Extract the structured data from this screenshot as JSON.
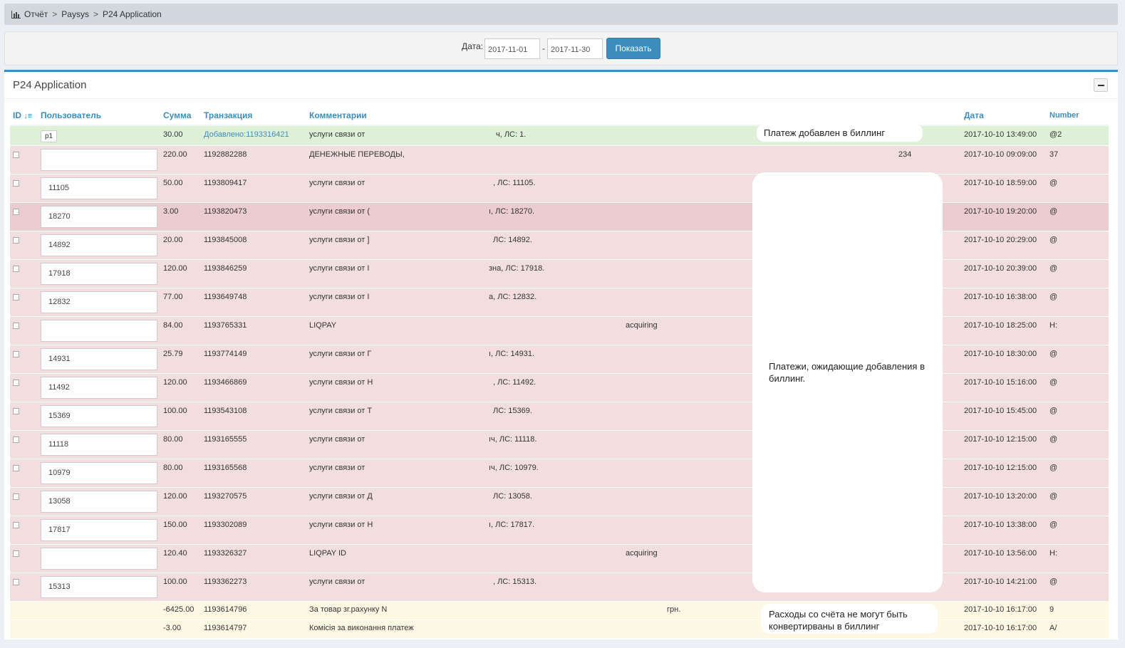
{
  "breadcrumb": {
    "items": [
      "Отчёт",
      "Paysys",
      "P24 Application"
    ],
    "separator": ">"
  },
  "filter": {
    "label": "Дата:",
    "date_from": "2017-11-01",
    "separator": "-",
    "date_to": "2017-11-30",
    "button": "Показать"
  },
  "panel": {
    "title": "P24 Application"
  },
  "columns": {
    "id": "ID",
    "user": "Пользователь",
    "sum": "Сумма",
    "transaction": "Транзакция",
    "comment": "Комментарии",
    "date": "Дата",
    "number": "Number"
  },
  "green_row": {
    "user_tag": "p1",
    "sum": "30.00",
    "added_prefix": "Добавлено:",
    "transaction": "1193316421",
    "comment": "услуги связи от",
    "comment_tail": "ч, ЛС: 1.",
    "date": "2017-10-10 13:49:00",
    "number": "@2"
  },
  "red_rows": [
    {
      "user": "",
      "sum": "220.00",
      "transaction": "1192882288",
      "comment": "ДЕНЕЖНЫЕ ПЕРЕВОДЫ,",
      "comment_tail": "",
      "extra": "234",
      "date": "2017-10-10 09:09:00",
      "number": "37"
    },
    {
      "user": "11105",
      "sum": "50.00",
      "transaction": "1193809417",
      "comment": "услуги связи от",
      "comment_tail": ", ЛС: 11105.",
      "extra": "",
      "date": "2017-10-10 18:59:00",
      "number": "@"
    },
    {
      "user": "18270",
      "sum": "3.00",
      "transaction": "1193820473",
      "comment": "услуги связи от (",
      "comment_tail": "ı, ЛС: 18270.",
      "extra": "",
      "date": "2017-10-10 19:20:00",
      "number": "@"
    },
    {
      "user": "14892",
      "sum": "20.00",
      "transaction": "1193845008",
      "comment": "услуги связи от ]",
      "comment_tail": "ЛС: 14892.",
      "extra": "",
      "date": "2017-10-10 20:29:00",
      "number": "@"
    },
    {
      "user": "17918",
      "sum": "120.00",
      "transaction": "1193846259",
      "comment": "услуги связи от I",
      "comment_tail": "зна, ЛС: 17918.",
      "extra": "",
      "date": "2017-10-10 20:39:00",
      "number": "@"
    },
    {
      "user": "12832",
      "sum": "77.00",
      "transaction": "1193649748",
      "comment": "услуги связи от I",
      "comment_tail": "а, ЛС: 12832.",
      "extra": "",
      "date": "2017-10-10 16:38:00",
      "number": "@"
    },
    {
      "user": "",
      "sum": "84.00",
      "transaction": "1193765331",
      "comment": "LIQPAY",
      "comment_tail": "",
      "extra": "acquiring",
      "date": "2017-10-10 18:25:00",
      "number": "H:"
    },
    {
      "user": "14931",
      "sum": "25.79",
      "transaction": "1193774149",
      "comment": "услуги связи от Г",
      "comment_tail": "ı, ЛС: 14931.",
      "extra": "",
      "date": "2017-10-10 18:30:00",
      "number": "@"
    },
    {
      "user": "11492",
      "sum": "120.00",
      "transaction": "1193466869",
      "comment": "услуги связи от Н",
      "comment_tail": ", ЛС: 11492.",
      "extra": "",
      "date": "2017-10-10 15:16:00",
      "number": "@"
    },
    {
      "user": "15369",
      "sum": "100.00",
      "transaction": "1193543108",
      "comment": "услуги связи от Т",
      "comment_tail": "ЛС: 15369.",
      "extra": "",
      "date": "2017-10-10 15:45:00",
      "number": "@"
    },
    {
      "user": "11118",
      "sum": "80.00",
      "transaction": "1193165555",
      "comment": "услуги связи от",
      "comment_tail": "ıч, ЛС: 11118.",
      "extra": "",
      "date": "2017-10-10 12:15:00",
      "number": "@"
    },
    {
      "user": "10979",
      "sum": "80.00",
      "transaction": "1193165568",
      "comment": "услуги связи от",
      "comment_tail": "ıч, ЛС: 10979.",
      "extra": "",
      "date": "2017-10-10 12:15:00",
      "number": "@"
    },
    {
      "user": "13058",
      "sum": "120.00",
      "transaction": "1193270575",
      "comment": "услуги связи от Д",
      "comment_tail": "ЛС: 13058.",
      "extra": "",
      "date": "2017-10-10 13:20:00",
      "number": "@"
    },
    {
      "user": "17817",
      "sum": "150.00",
      "transaction": "1193302089",
      "comment": "услуги связи от Н",
      "comment_tail": "ı, ЛС: 17817.",
      "extra": "",
      "date": "2017-10-10 13:38:00",
      "number": "@"
    },
    {
      "user": "",
      "sum": "120.40",
      "transaction": "1193326327",
      "comment": "LIQPAY ID",
      "comment_tail": "",
      "extra": "acquiring",
      "date": "2017-10-10 13:56:00",
      "number": "H:"
    },
    {
      "user": "15313",
      "sum": "100.00",
      "transaction": "1193362273",
      "comment": "услуги связи от",
      "comment_tail": ", ЛС: 15313.",
      "extra": "",
      "date": "2017-10-10 14:21:00",
      "number": "@"
    }
  ],
  "yellow_rows": [
    {
      "sum": "-6425.00",
      "transaction": "1193614796",
      "comment": "За товар зг.рахунку N",
      "extra": "грн.",
      "date": "2017-10-10 16:17:00",
      "number": "9"
    },
    {
      "sum": "-3.00",
      "transaction": "1193614797",
      "comment": "Комісія за виконання платеж",
      "extra": "",
      "date": "2017-10-10 16:17:00",
      "number": "A/"
    }
  ],
  "annotations": {
    "added": "Платеж добавлен в биллинг",
    "pending": "Платежи, ожидающие добавления в биллинг.",
    "expenses": "Расходы со счёта не могут быть конвертирваны в биллинг"
  }
}
